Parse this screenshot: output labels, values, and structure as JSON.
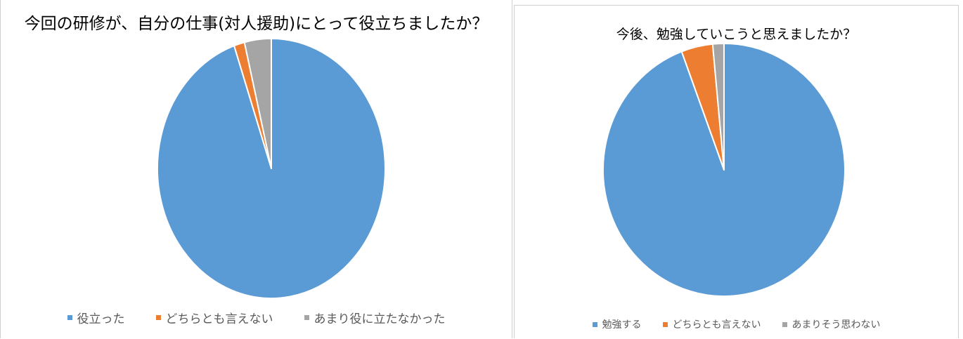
{
  "chart_data": [
    {
      "type": "pie",
      "title": "今回の研修が、自分の仕事(対人援助)にとって役立ちましたか？",
      "categories": [
        "役立った",
        "どちらとも言えない",
        "あまり役に立たなかった"
      ],
      "values": [
        94.7,
        1.5,
        3.8
      ],
      "colors": [
        "#5b9bd5",
        "#ed7d31",
        "#a5a5a5"
      ],
      "legend_position": "bottom"
    },
    {
      "type": "pie",
      "title": "今後、勉強していこうと思えましたか？",
      "categories": [
        "勉強する",
        "どちらとも言えない",
        "あまりそう思わない"
      ],
      "values": [
        94.3,
        4.2,
        1.5
      ],
      "colors": [
        "#5b9bd5",
        "#ed7d31",
        "#a5a5a5"
      ],
      "legend_position": "bottom"
    }
  ]
}
